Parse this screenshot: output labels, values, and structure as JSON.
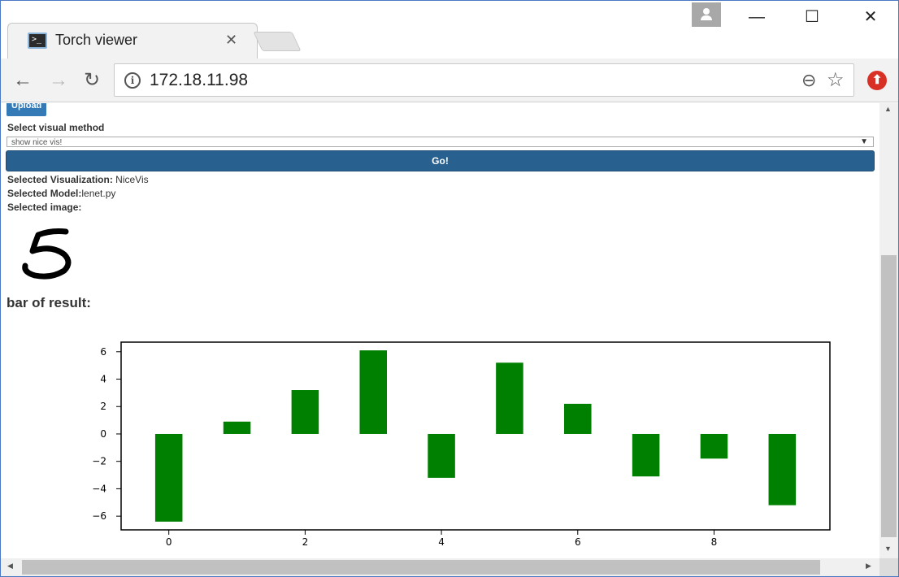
{
  "browser": {
    "tab_title": "Torch viewer",
    "tab_close": "✕",
    "url": "172.18.11.98",
    "back_glyph": "←",
    "forward_glyph": "→",
    "reload_glyph": "↻",
    "minimize_glyph": "—",
    "maximize_glyph": "☐",
    "close_glyph": "✕",
    "zoom_glyph": "⊖",
    "star_glyph": "☆",
    "ext_glyph": "⬆"
  },
  "page": {
    "upload_label": "Upload",
    "select_label": "Select visual method",
    "select_value": "show nice vis!",
    "go_label": "Go!",
    "selected_visualization_label": "Selected Visualization:",
    "selected_visualization_value": " NiceVis",
    "selected_model_label": "Selected Model:",
    "selected_model_value": "lenet.py",
    "selected_image_label": "Selected image:",
    "selected_image_digit": "5",
    "result_heading": "bar of result:"
  },
  "colors": {
    "bar": "#008000",
    "go_button": "#286090",
    "upload_button": "#337ab7"
  },
  "chart_data": {
    "type": "bar",
    "categories": [
      0,
      1,
      2,
      3,
      4,
      5,
      6,
      7,
      8,
      9
    ],
    "values": [
      -6.4,
      0.9,
      3.2,
      6.1,
      -3.2,
      5.2,
      2.2,
      -3.1,
      -1.8,
      -5.2
    ],
    "xticks": [
      0,
      2,
      4,
      6,
      8
    ],
    "yticks": [
      -6,
      -4,
      -2,
      0,
      2,
      4,
      6
    ],
    "ytick_labels": [
      "−6",
      "−4",
      "−2",
      "0",
      "2",
      "4",
      "6"
    ],
    "ylim": [
      -7,
      6.7
    ],
    "xlim": [
      -0.7,
      9.7
    ],
    "title": "",
    "xlabel": "",
    "ylabel": "",
    "grid": false
  }
}
